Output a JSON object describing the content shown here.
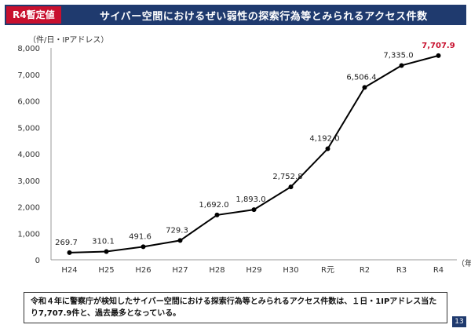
{
  "header": {
    "badge": "R4暫定値",
    "title": "サイバー空間におけるぜい弱性の探索行為等とみられるアクセス件数"
  },
  "chart_data": {
    "type": "line",
    "unit_label": "（件/日・IPアドレス）",
    "x_unit_label": "（年）",
    "categories": [
      "H24",
      "H25",
      "H26",
      "H27",
      "H28",
      "H29",
      "H30",
      "R元",
      "R2",
      "R3",
      "R4"
    ],
    "series": [
      {
        "values": [
          269.7,
          310.1,
          491.6,
          729.3,
          1692.0,
          1893.0,
          2752.8,
          4192.0,
          6506.4,
          7335.0,
          7707.9
        ],
        "labels": [
          "269.7",
          "310.1",
          "491.6",
          "729.3",
          "1,692.0",
          "1,893.0",
          "2,752.8",
          "4,192.0",
          "6,506.4",
          "7,335.0",
          "7,707.9"
        ]
      }
    ],
    "ylim": [
      0,
      8000
    ],
    "yticks": [
      "0",
      "1,000",
      "2,000",
      "3,000",
      "4,000",
      "5,000",
      "6,000",
      "7,000",
      "8,000"
    ],
    "line_color": "#000000",
    "highlight_color": "#c8102e",
    "grid": false
  },
  "note": {
    "text": "令和４年に警察庁が検知したサイバー空間における探索行為等とみられるアクセス件数は、１日・1IPアドレス当たり7,707.9件と、過去最多となっている。"
  },
  "page_number": "13",
  "colors": {
    "title_bg": "#1f3a6e",
    "badge_bg": "#c8102e"
  }
}
